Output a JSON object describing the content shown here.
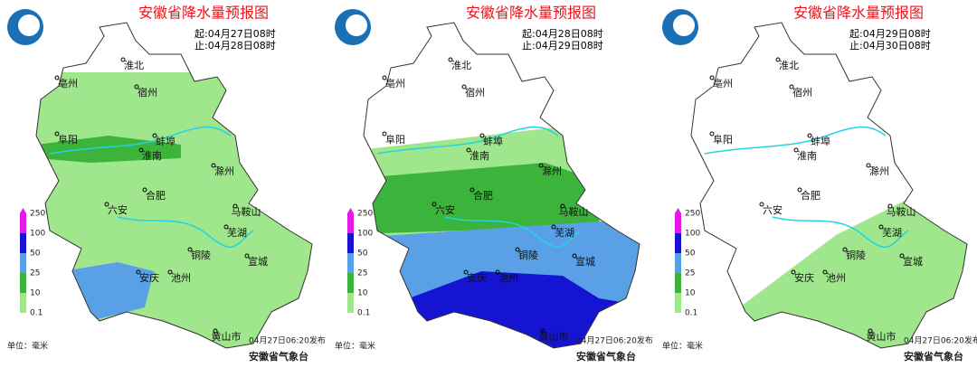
{
  "panels": [
    {
      "title": "安徽省降水量预报图",
      "start": "起:04月27日08时",
      "end": "止:04月28日08时",
      "release": "04月27日06:20发布"
    },
    {
      "title": "安徽省降水量预报图",
      "start": "起:04月28日08时",
      "end": "止:04月29日08时",
      "release": "04月27日06:20发布"
    },
    {
      "title": "安徽省降水量预报图",
      "start": "起:04月29日08时",
      "end": "止:04月30日08时",
      "release": "04月27日06:20发布"
    }
  ],
  "cities": [
    "淮北",
    "宿州",
    "亳州",
    "阜阳",
    "蚌埠",
    "淮南",
    "滁州",
    "合肥",
    "六安",
    "马鞍山",
    "芜湖",
    "宣城",
    "铜陵",
    "池州",
    "安庆",
    "黄山市"
  ],
  "legend": {
    "ticks": [
      250,
      100,
      50,
      25,
      10,
      0.1
    ],
    "colors": [
      "#e619e6",
      "#1414d2",
      "#5aa0e6",
      "#3cb43c",
      "#a0e68c"
    ],
    "unit": "单位：毫米"
  },
  "organization": "安徽省气象台"
}
